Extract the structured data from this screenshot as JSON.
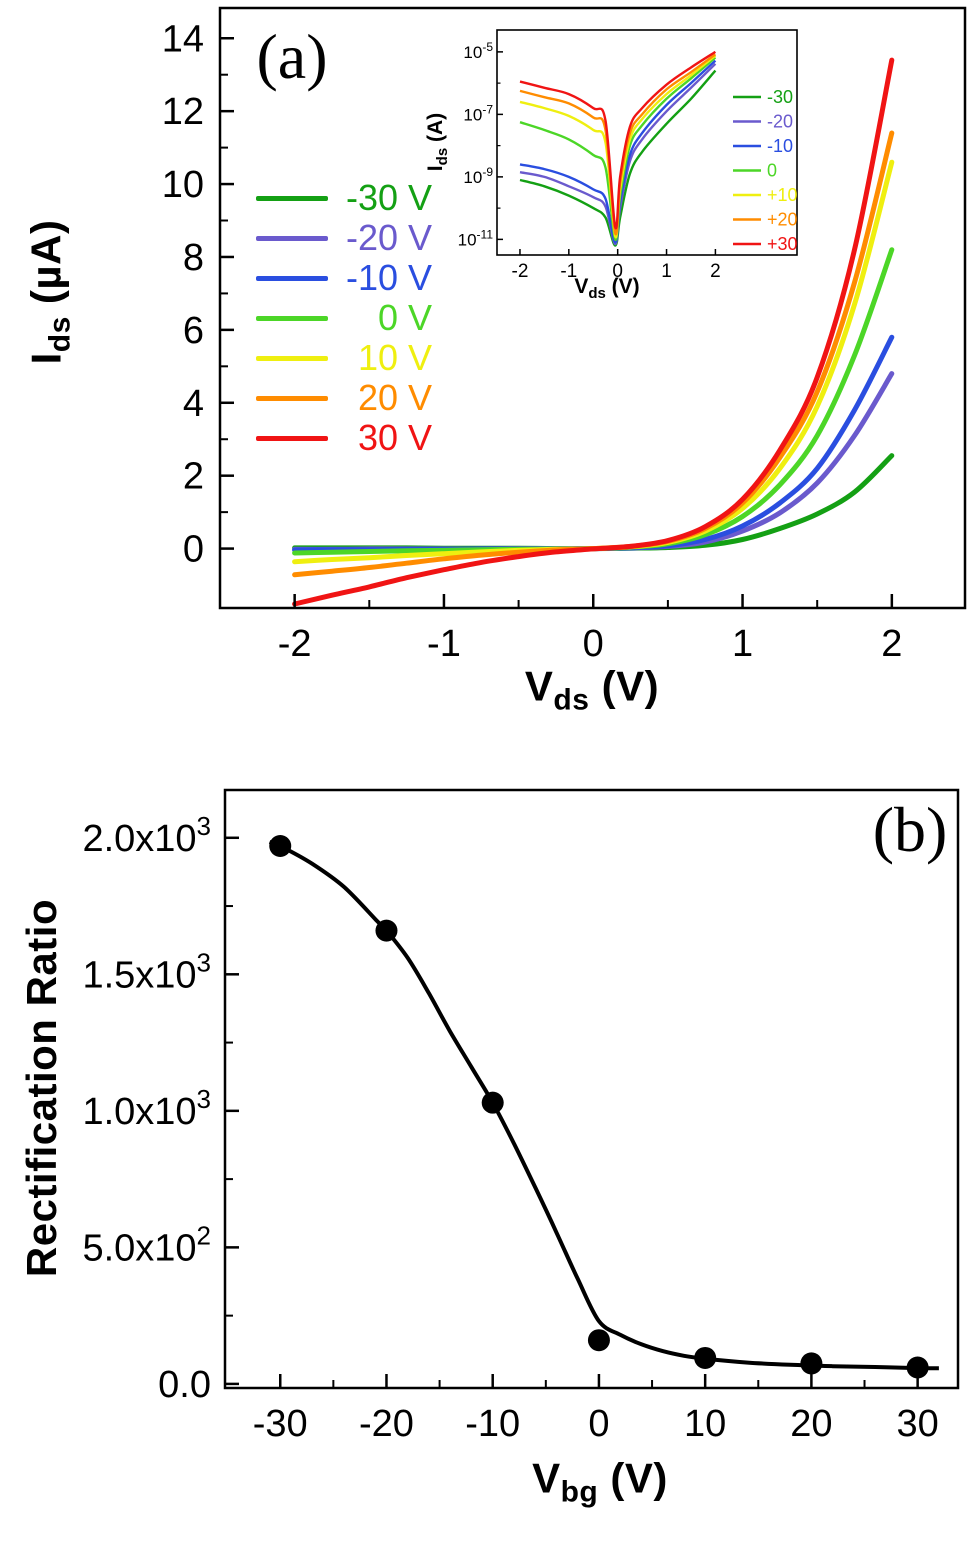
{
  "page": {
    "background": "#ffffff"
  },
  "chart_data": [
    {
      "id": "panel_a",
      "type": "line",
      "panel_label": "(a)",
      "xlabel": {
        "main": "V",
        "sub": "ds",
        "unit": " (V)"
      },
      "ylabel": {
        "main": "I",
        "sub": "ds",
        "unit": " (µA)"
      },
      "x_range": [
        -2.5,
        2.49
      ],
      "y_range": [
        -1.63,
        14.83
      ],
      "x_ticks": [
        -2,
        -1,
        0,
        1,
        2
      ],
      "x_minor_ticks": [
        -1.5,
        -0.5,
        0.5,
        1.5
      ],
      "y_ticks": [
        0,
        2,
        4,
        6,
        8,
        10,
        12,
        14
      ],
      "y_minor_ticks": [
        1,
        3,
        5,
        7,
        9,
        11,
        13
      ],
      "x": [
        -2,
        -1.75,
        -1.5,
        -1.25,
        -1,
        -0.75,
        -0.5,
        -0.25,
        0,
        0.25,
        0.5,
        0.75,
        1,
        1.25,
        1.5,
        1.75,
        2
      ],
      "series": [
        {
          "label": "-30 V",
          "color": "#14a014",
          "values": [
            0.02,
            0.02,
            0.02,
            0.02,
            0.01,
            0.01,
            0.01,
            0,
            0,
            0.01,
            0.03,
            0.09,
            0.25,
            0.55,
            0.95,
            1.55,
            2.55
          ]
        },
        {
          "label": "-20 V",
          "color": "#6a5acd",
          "values": [
            -0.02,
            -0.02,
            -0.01,
            -0.01,
            -0.01,
            -0.01,
            0,
            0,
            0,
            0.02,
            0.06,
            0.18,
            0.48,
            0.98,
            1.8,
            3.1,
            4.8
          ]
        },
        {
          "label": "-10 V",
          "color": "#2a4ee0",
          "values": [
            -0.04,
            -0.03,
            -0.03,
            -0.02,
            -0.02,
            -0.01,
            -0.01,
            0,
            0,
            0.02,
            0.08,
            0.25,
            0.62,
            1.25,
            2.2,
            3.8,
            5.8
          ]
        },
        {
          "label": "0 V",
          "color": "#4cd627",
          "values": [
            -0.12,
            -0.1,
            -0.08,
            -0.06,
            -0.05,
            -0.03,
            -0.02,
            -0.01,
            0,
            0.04,
            0.13,
            0.38,
            0.88,
            1.75,
            3.1,
            5.3,
            8.2
          ]
        },
        {
          "label": "10 V",
          "color": "#efef10",
          "values": [
            -0.36,
            -0.3,
            -0.25,
            -0.19,
            -0.14,
            -0.09,
            -0.05,
            -0.02,
            0,
            0.05,
            0.17,
            0.48,
            1.1,
            2.2,
            3.9,
            6.7,
            10.6
          ]
        },
        {
          "label": "20 V",
          "color": "#ff8c00",
          "values": [
            -0.72,
            -0.62,
            -0.52,
            -0.4,
            -0.28,
            -0.18,
            -0.1,
            -0.04,
            0,
            0.06,
            0.2,
            0.55,
            1.25,
            2.5,
            4.3,
            7.3,
            11.4
          ]
        },
        {
          "label": "30 V",
          "color": "#f01414",
          "values": [
            -1.52,
            -1.28,
            -1.05,
            -0.8,
            -0.58,
            -0.38,
            -0.22,
            -0.09,
            -0.01,
            0.06,
            0.22,
            0.6,
            1.35,
            2.7,
            4.7,
            8.2,
            13.4
          ]
        }
      ]
    },
    {
      "id": "panel_a_inset",
      "type": "line",
      "y_scale": "log10",
      "xlabel": {
        "main": "V",
        "sub": "ds",
        "unit": " (V)"
      },
      "ylabel": {
        "main": "I",
        "sub": "ds",
        "unit": " (A)"
      },
      "x_range": [
        -2.47,
        3.67
      ],
      "y_log_range": [
        -11.5,
        -4.3
      ],
      "x_ticks": [
        -2,
        -1,
        0,
        1,
        2
      ],
      "y_ticks": [
        {
          "value": -5,
          "label": "10^-5"
        },
        {
          "value": -7,
          "label": "10^-7"
        },
        {
          "value": -9,
          "label": "10^-9"
        },
        {
          "value": -11,
          "label": "10^-11"
        }
      ],
      "y_minor_ticks": [
        -6,
        -8,
        -10
      ],
      "x": [
        -2,
        -1.5,
        -1,
        -0.5,
        -0.25,
        -0.05,
        0.05,
        0.25,
        0.5,
        1,
        1.5,
        2
      ],
      "series": [
        {
          "label": "-30",
          "color": "#14a014",
          "log_values": [
            -9.1,
            -9.3,
            -9.6,
            -10.0,
            -10.3,
            -11.2,
            -10.3,
            -8.9,
            -8.2,
            -7.3,
            -6.5,
            -5.6
          ]
        },
        {
          "label": "-20",
          "color": "#6a5acd",
          "log_values": [
            -8.85,
            -9.0,
            -9.3,
            -9.65,
            -9.95,
            -11.15,
            -10.0,
            -8.5,
            -7.8,
            -6.9,
            -6.15,
            -5.38
          ]
        },
        {
          "label": "-10",
          "color": "#2a4ee0",
          "log_values": [
            -8.6,
            -8.75,
            -9.0,
            -9.4,
            -9.7,
            -11.1,
            -9.8,
            -8.3,
            -7.6,
            -6.7,
            -6.0,
            -5.28
          ]
        },
        {
          "label": "0",
          "color": "#4cd627",
          "log_values": [
            -7.25,
            -7.5,
            -7.8,
            -8.3,
            -8.7,
            -11.0,
            -9.6,
            -8.0,
            -7.35,
            -6.5,
            -5.85,
            -5.18
          ]
        },
        {
          "label": "+10",
          "color": "#efef10",
          "log_values": [
            -6.6,
            -6.8,
            -7.05,
            -7.5,
            -7.9,
            -10.9,
            -9.4,
            -7.8,
            -7.15,
            -6.35,
            -5.75,
            -5.12
          ]
        },
        {
          "label": "+20",
          "color": "#ff8c00",
          "log_values": [
            -6.25,
            -6.45,
            -6.65,
            -7.1,
            -7.5,
            -10.8,
            -9.2,
            -7.6,
            -7.0,
            -6.2,
            -5.65,
            -5.08
          ]
        },
        {
          "label": "+30",
          "color": "#f01414",
          "log_values": [
            -5.95,
            -6.15,
            -6.35,
            -6.8,
            -7.2,
            -10.6,
            -9.0,
            -7.4,
            -6.8,
            -6.05,
            -5.5,
            -5.0
          ]
        }
      ]
    },
    {
      "id": "panel_b",
      "type": "scatter",
      "panel_label": "(b)",
      "xlabel": {
        "main": "V",
        "sub": "bg",
        "unit": " (V)"
      },
      "ylabel": "Rectification Ratio",
      "x_range": [
        -35.2,
        33.8
      ],
      "y_range": [
        -15,
        2175
      ],
      "x_ticks": [
        -30,
        -20,
        -10,
        0,
        10,
        20,
        30
      ],
      "x_minor_ticks": [
        -25,
        -15,
        -5,
        5,
        15,
        25
      ],
      "y_ticks": [
        {
          "value": 0,
          "label": "0.0"
        },
        {
          "value": 500,
          "label": "5.0x10^2"
        },
        {
          "value": 1000,
          "label": "1.0x10^3"
        },
        {
          "value": 1500,
          "label": "1.5x10^3"
        },
        {
          "value": 2000,
          "label": "2.0x10^3"
        }
      ],
      "y_minor_ticks": [
        250,
        750,
        1250,
        1750
      ],
      "points": {
        "x": [
          -30,
          -20,
          -10,
          0,
          10,
          20,
          30
        ],
        "y": [
          1970,
          1660,
          1030,
          160,
          95,
          75,
          60
        ],
        "color": "#000000"
      },
      "fit_curve": {
        "color": "#000000",
        "x": [
          -31,
          -30,
          -27,
          -24,
          -21,
          -20,
          -18,
          -16,
          -14,
          -12,
          -10,
          -8,
          -6,
          -4,
          -2,
          0,
          2,
          4,
          6,
          8,
          10,
          14,
          18,
          22,
          26,
          30,
          32
        ],
        "y": [
          1985,
          1970,
          1905,
          1820,
          1700,
          1660,
          1560,
          1430,
          1290,
          1160,
          1030,
          880,
          720,
          555,
          385,
          230,
          180,
          145,
          120,
          103,
          92,
          78,
          70,
          65,
          62,
          58,
          57
        ]
      }
    }
  ]
}
